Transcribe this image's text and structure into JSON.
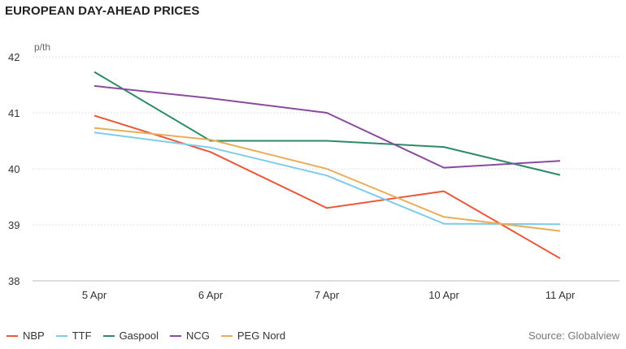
{
  "title": "EUROPEAN DAY-AHEAD PRICES",
  "source": "Source: Globalview",
  "chart_data": {
    "type": "line",
    "ylabel": "p/th",
    "ylim": [
      38,
      42
    ],
    "yticks": [
      38,
      39,
      40,
      41,
      42
    ],
    "grid": true,
    "legend_position": "bottom-left",
    "categories": [
      "5 Apr",
      "6 Apr",
      "7 Apr",
      "10 Apr",
      "11 Apr"
    ],
    "series": [
      {
        "name": "NBP",
        "color": "#e8593c",
        "values": [
          40.95,
          40.3,
          39.3,
          39.6,
          38.4
        ]
      },
      {
        "name": "TTF",
        "color": "#7ecbea",
        "values": [
          40.65,
          40.38,
          39.88,
          39.02,
          39.01
        ]
      },
      {
        "name": "Gaspool",
        "color": "#2e8a66",
        "values": [
          41.73,
          40.5,
          40.5,
          40.39,
          39.89
        ]
      },
      {
        "name": "NCG",
        "color": "#8a4a9e",
        "values": [
          41.48,
          41.26,
          41.0,
          40.02,
          40.14
        ]
      },
      {
        "name": "PEG Nord",
        "color": "#e8ad5a",
        "values": [
          40.73,
          40.52,
          40.0,
          39.14,
          38.89
        ]
      }
    ]
  }
}
